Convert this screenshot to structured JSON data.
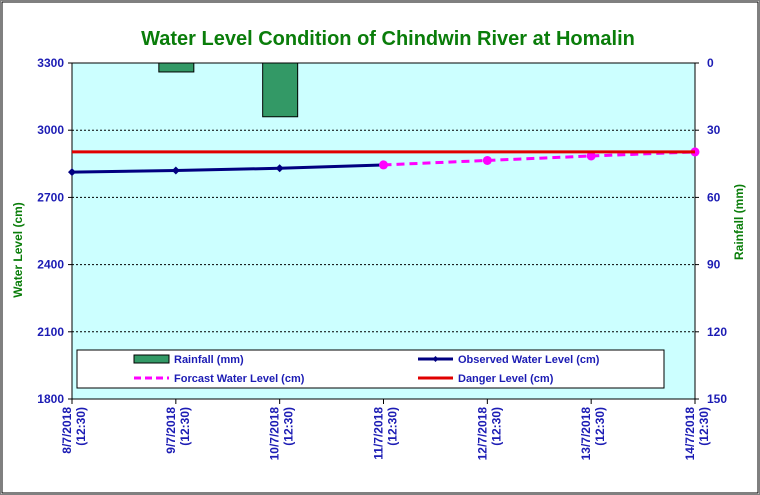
{
  "chart_data": {
    "type": "line",
    "title": "Water Level Condition  of Chindwin River at Homalin",
    "ylabel": "Water Level (cm)",
    "y2label": "Rainfall (mm)",
    "ylim": [
      1800,
      3300
    ],
    "y2lim": [
      0,
      150
    ],
    "y_ticks": [
      "3300",
      "3000",
      "2700",
      "2400",
      "2100",
      "1800"
    ],
    "y2_ticks": [
      "0",
      "30",
      "60",
      "90",
      "120",
      "150"
    ],
    "y2_inverted": true,
    "categories": [
      [
        "8/7/2018",
        "(12:30)"
      ],
      [
        "9/7/2018",
        "(12:30)"
      ],
      [
        "10/7/2018",
        "(12:30)"
      ],
      [
        "11/7/2018",
        "(12:30)"
      ],
      [
        "12/7/2018",
        "(12:30)"
      ],
      [
        "13/7/2018",
        "(12:30)"
      ],
      [
        "14/7/2018",
        "(12:30)"
      ]
    ],
    "grid": true,
    "legend_position": "bottom",
    "series": [
      {
        "name": "Rainfall (mm)",
        "kind": "bar",
        "axis": "right",
        "color": "#339966",
        "values": [
          0,
          4,
          24,
          null,
          null,
          null,
          null
        ]
      },
      {
        "name": "Observed Water Level (cm)",
        "kind": "line",
        "axis": "left",
        "color": "#000080",
        "values": [
          2813,
          2820,
          2830,
          2845,
          null,
          null,
          null
        ]
      },
      {
        "name": "Forcast Water Level (cm)",
        "kind": "line",
        "axis": "left",
        "color": "#ff00ff",
        "dashed": true,
        "values": [
          null,
          null,
          null,
          2845,
          2865,
          2885,
          2903
        ]
      },
      {
        "name": "Danger Level (cm)",
        "kind": "line",
        "axis": "left",
        "color": "#e00000",
        "values": [
          2903,
          2903,
          2903,
          2903,
          2903,
          2903,
          2903
        ]
      }
    ],
    "colors": {
      "plot_background": "#ccffff",
      "title": "#0a7d0a",
      "ticks": "#1c1cb4"
    }
  }
}
